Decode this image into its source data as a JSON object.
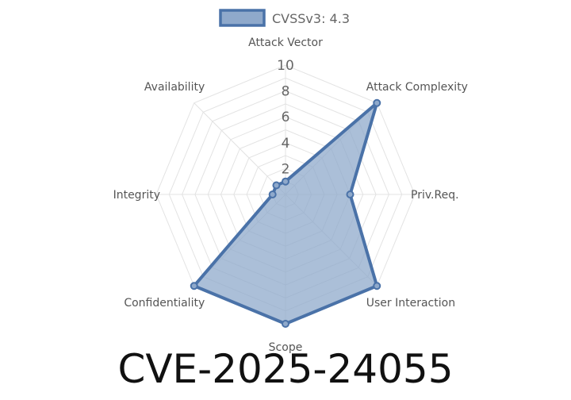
{
  "chart_data": {
    "type": "radar",
    "legend": {
      "label": "CVSSv3: 4.3",
      "position": "top-center"
    },
    "axes": [
      "Attack Vector",
      "Attack Complexity",
      "Priv.Req.",
      "User Interaction",
      "Scope",
      "Confidentiality",
      "Integrity",
      "Availability"
    ],
    "ticks": [
      "2",
      "4",
      "6",
      "8",
      "10"
    ],
    "rlim": [
      0,
      10
    ],
    "grid": true,
    "series": [
      {
        "name": "CVSSv3: 4.3",
        "values": [
          1,
          10,
          5,
          10,
          10,
          10,
          1,
          1
        ],
        "fill_color": "#8fa9cb",
        "fill_opacity": 0.75,
        "line_color": "#4a72a8"
      }
    ],
    "caption": "CVE-2025-24055"
  }
}
